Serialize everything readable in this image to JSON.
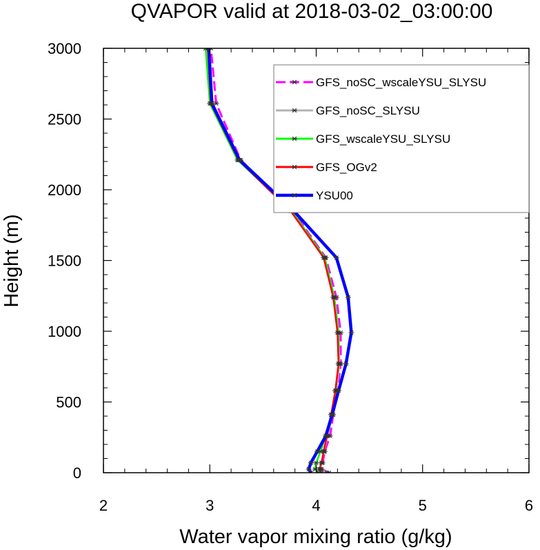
{
  "chart_data": {
    "type": "line",
    "title": "QVAPOR valid at 2018-03-02_03:00:00",
    "xlabel": "Water vapor mixing ratio (g/kg)",
    "ylabel": "Height (m)",
    "xlim": [
      2,
      6
    ],
    "ylim": [
      0,
      3000
    ],
    "x_ticks": [
      2,
      3,
      4,
      5,
      6
    ],
    "y_ticks": [
      0,
      500,
      1000,
      1500,
      2000,
      2500,
      3000
    ],
    "legend_position": "top-right",
    "grid": false,
    "series": [
      {
        "name": "GFS_noSC_wscaleYSU_SLYSU",
        "color": "#ff00ff",
        "dash": true,
        "points": [
          {
            "x": 4.12,
            "y": 0
          },
          {
            "x": 4.05,
            "y": 25
          },
          {
            "x": 4.06,
            "y": 70
          },
          {
            "x": 4.08,
            "y": 150
          },
          {
            "x": 4.13,
            "y": 260
          },
          {
            "x": 4.16,
            "y": 410
          },
          {
            "x": 4.2,
            "y": 580
          },
          {
            "x": 4.23,
            "y": 770
          },
          {
            "x": 4.23,
            "y": 990
          },
          {
            "x": 4.19,
            "y": 1240
          },
          {
            "x": 4.09,
            "y": 1520
          },
          {
            "x": 3.78,
            "y": 1850
          },
          {
            "x": 3.29,
            "y": 2210
          },
          {
            "x": 3.06,
            "y": 2610
          },
          {
            "x": 3.01,
            "y": 3000
          }
        ]
      },
      {
        "name": "GFS_noSC_SLYSU",
        "color": "#b3b3b3",
        "dash": false,
        "points": [
          {
            "x": 4.1,
            "y": 0
          },
          {
            "x": 4.04,
            "y": 25
          },
          {
            "x": 4.05,
            "y": 70
          },
          {
            "x": 4.07,
            "y": 150
          },
          {
            "x": 4.11,
            "y": 260
          },
          {
            "x": 4.15,
            "y": 410
          },
          {
            "x": 4.19,
            "y": 580
          },
          {
            "x": 4.22,
            "y": 770
          },
          {
            "x": 4.21,
            "y": 990
          },
          {
            "x": 4.17,
            "y": 1240
          },
          {
            "x": 4.08,
            "y": 1520
          },
          {
            "x": 3.77,
            "y": 1850
          },
          {
            "x": 3.27,
            "y": 2210
          },
          {
            "x": 3.02,
            "y": 2610
          },
          {
            "x": 2.98,
            "y": 3000
          }
        ]
      },
      {
        "name": "GFS_wscaleYSU_SLYSU",
        "color": "#00ff00",
        "dash": false,
        "points": [
          {
            "x": 4.02,
            "y": 0
          },
          {
            "x": 3.99,
            "y": 25
          },
          {
            "x": 4.0,
            "y": 70
          },
          {
            "x": 4.04,
            "y": 150
          },
          {
            "x": 4.09,
            "y": 260
          },
          {
            "x": 4.14,
            "y": 410
          },
          {
            "x": 4.18,
            "y": 580
          },
          {
            "x": 4.21,
            "y": 770
          },
          {
            "x": 4.21,
            "y": 990
          },
          {
            "x": 4.17,
            "y": 1240
          },
          {
            "x": 4.08,
            "y": 1520
          },
          {
            "x": 3.77,
            "y": 1850
          },
          {
            "x": 3.26,
            "y": 2210
          },
          {
            "x": 3.0,
            "y": 2610
          },
          {
            "x": 2.96,
            "y": 3000
          }
        ]
      },
      {
        "name": "GFS_OGv2",
        "color": "#ff0000",
        "dash": false,
        "points": [
          {
            "x": 4.05,
            "y": 0
          },
          {
            "x": 4.03,
            "y": 25
          },
          {
            "x": 4.05,
            "y": 70
          },
          {
            "x": 4.07,
            "y": 150
          },
          {
            "x": 4.1,
            "y": 260
          },
          {
            "x": 4.14,
            "y": 410
          },
          {
            "x": 4.18,
            "y": 580
          },
          {
            "x": 4.21,
            "y": 770
          },
          {
            "x": 4.2,
            "y": 990
          },
          {
            "x": 4.16,
            "y": 1240
          },
          {
            "x": 4.07,
            "y": 1520
          },
          {
            "x": 3.76,
            "y": 1850
          },
          {
            "x": 3.27,
            "y": 2210
          },
          {
            "x": 3.01,
            "y": 2610
          },
          {
            "x": 2.98,
            "y": 3000
          }
        ]
      },
      {
        "name": "YSU00",
        "color": "#0000ff",
        "dash": false,
        "points": [
          {
            "x": 3.95,
            "y": 0
          },
          {
            "x": 3.93,
            "y": 25
          },
          {
            "x": 3.95,
            "y": 70
          },
          {
            "x": 4.01,
            "y": 150
          },
          {
            "x": 4.09,
            "y": 260
          },
          {
            "x": 4.15,
            "y": 410
          },
          {
            "x": 4.21,
            "y": 580
          },
          {
            "x": 4.28,
            "y": 770
          },
          {
            "x": 4.33,
            "y": 990
          },
          {
            "x": 4.3,
            "y": 1240
          },
          {
            "x": 4.19,
            "y": 1520
          },
          {
            "x": 3.79,
            "y": 1850
          },
          {
            "x": 3.28,
            "y": 2210
          },
          {
            "x": 3.02,
            "y": 2610
          },
          {
            "x": 2.99,
            "y": 3000
          }
        ]
      }
    ]
  }
}
